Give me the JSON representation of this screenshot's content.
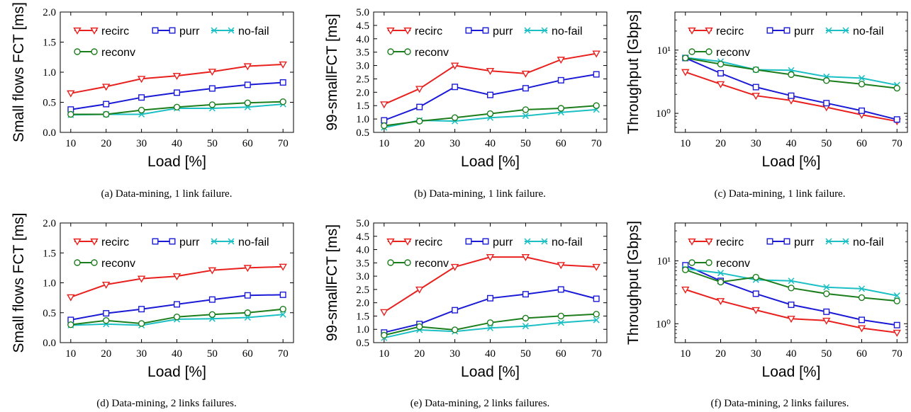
{
  "chart_data": [
    {
      "type": "line",
      "caption": "(a) Data-mining, 1 link failure.",
      "xlabel": "Load [%]",
      "ylabel": "Small flows FCT [ms]",
      "x": [
        10,
        20,
        30,
        40,
        50,
        60,
        70
      ],
      "xlim": [
        10,
        70
      ],
      "ylim": [
        0,
        2.0
      ],
      "yscale": "linear",
      "yticks": [
        0.0,
        0.5,
        1.0,
        1.5,
        2.0
      ],
      "ytick_labels": [
        "0.0",
        "0.5",
        "1.0",
        "1.5",
        "2.0"
      ],
      "grid": false,
      "legend": "top",
      "series": [
        {
          "name": "recirc",
          "color": "#e8201e",
          "marker": "triangle-down",
          "values": [
            0.65,
            0.76,
            0.89,
            0.94,
            1.01,
            1.1,
            1.13
          ]
        },
        {
          "name": "purr",
          "color": "#1a1ad6",
          "marker": "square",
          "values": [
            0.38,
            0.47,
            0.58,
            0.66,
            0.73,
            0.79,
            0.83
          ]
        },
        {
          "name": "no-fail",
          "color": "#1bbfc4",
          "marker": "x",
          "values": [
            0.29,
            0.3,
            0.3,
            0.4,
            0.4,
            0.42,
            0.47
          ]
        },
        {
          "name": "reconv",
          "color": "#1b7d1b",
          "marker": "circle",
          "values": [
            0.3,
            0.3,
            0.37,
            0.42,
            0.46,
            0.49,
            0.51
          ]
        }
      ]
    },
    {
      "type": "line",
      "caption": "(b) Data-mining, 1 link failure.",
      "xlabel": "Load [%]",
      "ylabel": "99-smallFCT [ms]",
      "x": [
        10,
        20,
        30,
        40,
        50,
        60,
        70
      ],
      "xlim": [
        10,
        70
      ],
      "ylim": [
        0.5,
        5.0
      ],
      "yscale": "linear",
      "yticks": [
        0.5,
        1.0,
        1.5,
        2.0,
        2.5,
        3.0,
        3.5,
        4.0,
        4.5,
        5.0
      ],
      "ytick_labels": [
        "0.5",
        "1.0",
        "1.5",
        "2.0",
        "2.5",
        "3.0",
        "3.5",
        "4.0",
        "4.5",
        "5.0"
      ],
      "grid": false,
      "legend": "top",
      "series": [
        {
          "name": "recirc",
          "color": "#e8201e",
          "marker": "triangle-down",
          "values": [
            1.55,
            2.13,
            3.0,
            2.8,
            2.7,
            3.22,
            3.45
          ]
        },
        {
          "name": "purr",
          "color": "#1a1ad6",
          "marker": "square",
          "values": [
            0.95,
            1.45,
            2.2,
            1.9,
            2.15,
            2.45,
            2.67
          ]
        },
        {
          "name": "no-fail",
          "color": "#1bbfc4",
          "marker": "x",
          "values": [
            0.68,
            0.95,
            0.92,
            1.05,
            1.12,
            1.25,
            1.35
          ]
        },
        {
          "name": "reconv",
          "color": "#1b7d1b",
          "marker": "circle",
          "values": [
            0.75,
            0.92,
            1.05,
            1.2,
            1.35,
            1.4,
            1.5
          ]
        }
      ]
    },
    {
      "type": "line",
      "caption": "(c) Data-mining, 1 link failure.",
      "xlabel": "Load [%]",
      "ylabel": "Throughput [Gbps]",
      "x": [
        10,
        20,
        30,
        40,
        50,
        60,
        70
      ],
      "xlim": [
        10,
        70
      ],
      "ylim": [
        0.5,
        40
      ],
      "yscale": "log",
      "yticks": [
        1,
        10
      ],
      "ytick_labels": [
        "10⁰",
        "10¹"
      ],
      "grid": false,
      "legend": "top",
      "series": [
        {
          "name": "recirc",
          "color": "#e8201e",
          "marker": "triangle-down",
          "values": [
            4.5,
            2.9,
            1.9,
            1.6,
            1.25,
            0.95,
            0.75
          ]
        },
        {
          "name": "purr",
          "color": "#1a1ad6",
          "marker": "square",
          "values": [
            7.5,
            4.3,
            2.6,
            1.9,
            1.45,
            1.1,
            0.8
          ]
        },
        {
          "name": "no-fail",
          "color": "#1bbfc4",
          "marker": "x",
          "values": [
            7.6,
            6.6,
            4.9,
            4.8,
            3.8,
            3.6,
            2.8
          ]
        },
        {
          "name": "reconv",
          "color": "#1b7d1b",
          "marker": "circle",
          "values": [
            7.5,
            6.0,
            4.9,
            4.1,
            3.3,
            2.9,
            2.5
          ]
        }
      ]
    },
    {
      "type": "line",
      "caption": "(d) Data-mining, 2 links failures.",
      "xlabel": "Load [%]",
      "ylabel": "Small flows FCT [ms]",
      "x": [
        10,
        20,
        30,
        40,
        50,
        60,
        70
      ],
      "xlim": [
        10,
        70
      ],
      "ylim": [
        0,
        2.0
      ],
      "yscale": "linear",
      "yticks": [
        0.0,
        0.5,
        1.0,
        1.5,
        2.0
      ],
      "ytick_labels": [
        "0.0",
        "0.5",
        "1.0",
        "1.5",
        "2.0"
      ],
      "grid": false,
      "legend": "top",
      "series": [
        {
          "name": "recirc",
          "color": "#e8201e",
          "marker": "triangle-down",
          "values": [
            0.76,
            0.97,
            1.07,
            1.11,
            1.21,
            1.25,
            1.27
          ]
        },
        {
          "name": "purr",
          "color": "#1a1ad6",
          "marker": "square",
          "values": [
            0.38,
            0.49,
            0.56,
            0.64,
            0.72,
            0.79,
            0.8
          ]
        },
        {
          "name": "no-fail",
          "color": "#1bbfc4",
          "marker": "x",
          "values": [
            0.29,
            0.31,
            0.29,
            0.39,
            0.4,
            0.42,
            0.47
          ]
        },
        {
          "name": "reconv",
          "color": "#1b7d1b",
          "marker": "circle",
          "values": [
            0.3,
            0.37,
            0.32,
            0.43,
            0.47,
            0.5,
            0.56
          ]
        }
      ]
    },
    {
      "type": "line",
      "caption": "(e) Data-mining, 2 links failures.",
      "xlabel": "Load [%]",
      "ylabel": "99-smallFCT [ms]",
      "x": [
        10,
        20,
        30,
        40,
        50,
        60,
        70
      ],
      "xlim": [
        10,
        70
      ],
      "ylim": [
        0.5,
        5.0
      ],
      "yscale": "linear",
      "yticks": [
        0.5,
        1.0,
        1.5,
        2.0,
        2.5,
        3.0,
        3.5,
        4.0,
        4.5,
        5.0
      ],
      "ytick_labels": [
        "0.5",
        "1.0",
        "1.5",
        "2.0",
        "2.5",
        "3.0",
        "3.5",
        "4.0",
        "4.5",
        "5.0"
      ],
      "grid": false,
      "legend": "top",
      "series": [
        {
          "name": "recirc",
          "color": "#e8201e",
          "marker": "triangle-down",
          "values": [
            1.65,
            2.5,
            3.35,
            3.72,
            3.72,
            3.42,
            3.35
          ]
        },
        {
          "name": "purr",
          "color": "#1a1ad6",
          "marker": "square",
          "values": [
            0.88,
            1.2,
            1.72,
            2.17,
            2.32,
            2.5,
            2.15
          ]
        },
        {
          "name": "no-fail",
          "color": "#1bbfc4",
          "marker": "x",
          "values": [
            0.68,
            0.98,
            0.92,
            1.05,
            1.12,
            1.25,
            1.35
          ]
        },
        {
          "name": "reconv",
          "color": "#1b7d1b",
          "marker": "circle",
          "values": [
            0.78,
            1.1,
            0.98,
            1.25,
            1.42,
            1.5,
            1.57
          ]
        }
      ]
    },
    {
      "type": "line",
      "caption": "(f) Data-mining, 2 links failures.",
      "xlabel": "Load [%]",
      "ylabel": "Throughput [Gbps]",
      "x": [
        10,
        20,
        30,
        40,
        50,
        60,
        70
      ],
      "xlim": [
        10,
        70
      ],
      "ylim": [
        0.5,
        40
      ],
      "yscale": "log",
      "yticks": [
        1,
        10
      ],
      "ytick_labels": [
        "10⁰",
        "10¹"
      ],
      "grid": false,
      "legend": "top",
      "series": [
        {
          "name": "recirc",
          "color": "#e8201e",
          "marker": "triangle-down",
          "values": [
            3.5,
            2.3,
            1.65,
            1.2,
            1.12,
            0.85,
            0.72
          ]
        },
        {
          "name": "purr",
          "color": "#1a1ad6",
          "marker": "square",
          "values": [
            8.5,
            4.8,
            3.0,
            2.0,
            1.55,
            1.15,
            0.95
          ]
        },
        {
          "name": "no-fail",
          "color": "#1bbfc4",
          "marker": "x",
          "values": [
            7.5,
            6.4,
            5.0,
            4.8,
            3.8,
            3.6,
            2.8
          ]
        },
        {
          "name": "reconv",
          "color": "#1b7d1b",
          "marker": "circle",
          "values": [
            7.2,
            4.6,
            5.5,
            3.7,
            3.0,
            2.6,
            2.3
          ]
        }
      ]
    }
  ]
}
